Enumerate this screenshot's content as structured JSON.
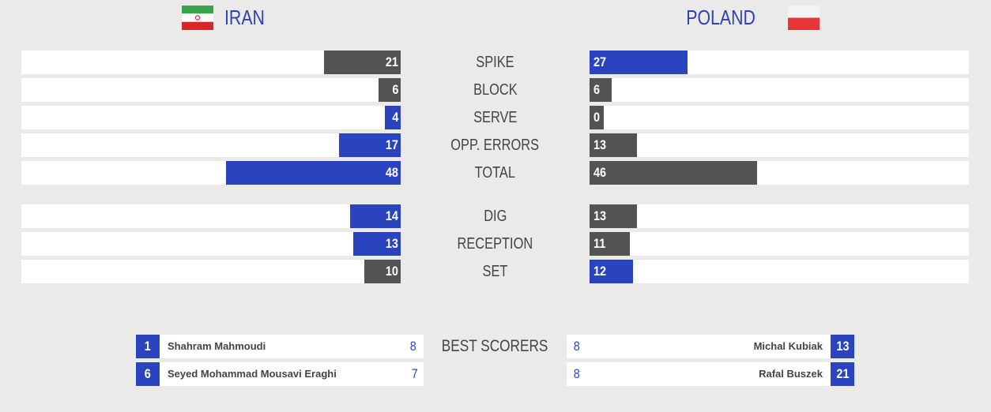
{
  "teams": {
    "home": {
      "name": "IRAN",
      "flag_icon": "iran-flag-icon"
    },
    "away": {
      "name": "POLAND",
      "flag_icon": "poland-flag-icon"
    }
  },
  "colors": {
    "accent": "#2a44bf",
    "neutral_bar": "#535353",
    "track": "#ffffff",
    "background": "#ece9e9"
  },
  "stats": [
    {
      "label": "SPIKE",
      "home": 21,
      "away": 27,
      "home_color": "gray",
      "away_color": "blue"
    },
    {
      "label": "BLOCK",
      "home": 6,
      "away": 6,
      "home_color": "gray",
      "away_color": "gray"
    },
    {
      "label": "SERVE",
      "home": 4,
      "away": 0,
      "home_color": "blue",
      "away_color": "gray"
    },
    {
      "label": "OPP. ERRORS",
      "home": 17,
      "away": 13,
      "home_color": "blue",
      "away_color": "gray"
    },
    {
      "label": "TOTAL",
      "home": 48,
      "away": 46,
      "home_color": "blue",
      "away_color": "gray"
    },
    {
      "label": "DIG",
      "home": 14,
      "away": 13,
      "home_color": "blue",
      "away_color": "gray"
    },
    {
      "label": "RECEPTION",
      "home": 13,
      "away": 11,
      "home_color": "blue",
      "away_color": "gray"
    },
    {
      "label": "SET",
      "home": 10,
      "away": 12,
      "home_color": "gray",
      "away_color": "blue"
    }
  ],
  "best_scorers": {
    "label": "BEST SCORERS",
    "home": [
      {
        "number": "1",
        "name": "Shahram Mahmoudi",
        "points": "8"
      },
      {
        "number": "6",
        "name": "Seyed Mohammad Mousavi Eraghi",
        "points": "7"
      }
    ],
    "away": [
      {
        "number": "13",
        "name": "Michal Kubiak",
        "points": "8"
      },
      {
        "number": "21",
        "name": "Rafal Buszek",
        "points": "8"
      }
    ]
  }
}
